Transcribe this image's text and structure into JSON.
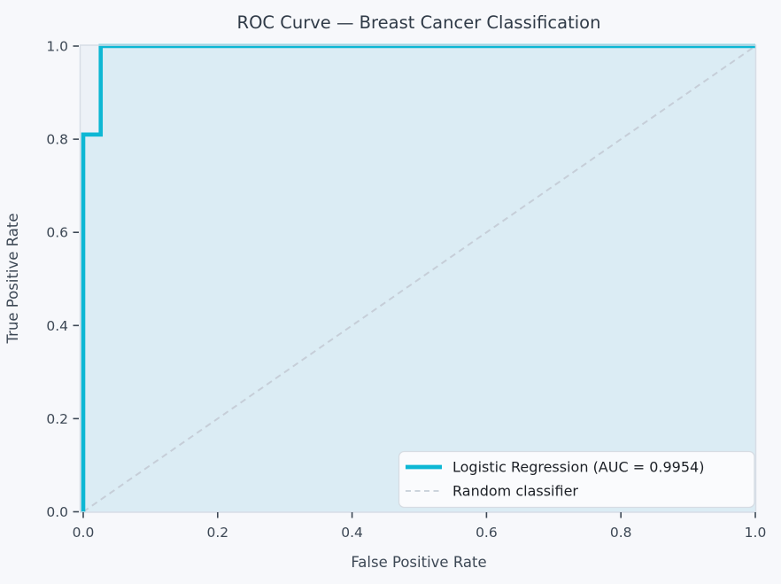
{
  "figure": {
    "background_color": "#f7f8fb",
    "axes_background_color": "#edf1f7",
    "spine_color": "#d7dde6",
    "text_color": "#3d4855",
    "title_color": "#2f3a47"
  },
  "chart_data": {
    "type": "line",
    "title": "ROC Curve — Breast Cancer Classification",
    "xlabel": "False Positive Rate",
    "ylabel": "True Positive Rate",
    "xlim": [
      0.0,
      1.0
    ],
    "ylim": [
      0.0,
      1.0
    ],
    "x_tick_labels": [
      "0.0",
      "0.2",
      "0.4",
      "0.6",
      "0.8",
      "1.0"
    ],
    "y_tick_labels": [
      "0.0",
      "0.2",
      "0.4",
      "0.6",
      "0.8",
      "1.0"
    ],
    "grid": false,
    "legend": {
      "position": "lower right",
      "background_color": "#fafbfd",
      "border_color": "#d6dce3",
      "text_color": "#1c2026"
    },
    "series": [
      {
        "name": "Logistic Regression (AUC = 0.9954)",
        "auc": 0.9954,
        "curve_type": "step",
        "line_style": "solid",
        "color": "#0db7d4",
        "line_width": 4.6,
        "fill_under_curve": true,
        "fill_color": "#dbecf4",
        "points": [
          [
            0.0,
            0.0
          ],
          [
            0.0,
            0.81
          ],
          [
            0.026,
            0.81
          ],
          [
            0.026,
            1.0
          ],
          [
            1.0,
            1.0
          ]
        ]
      },
      {
        "name": "Random classifier",
        "curve_type": "line",
        "line_style": "dashed",
        "color": "#c6ced8",
        "line_width": 2,
        "points": [
          [
            0.0,
            0.0
          ],
          [
            1.0,
            1.0
          ]
        ]
      }
    ]
  }
}
